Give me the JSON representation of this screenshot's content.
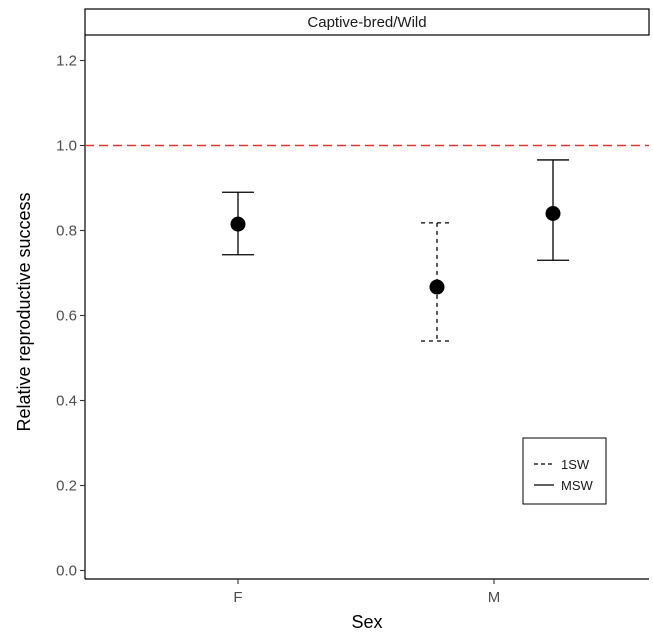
{
  "chart_data": {
    "type": "scatter",
    "facet_label": "Captive-bred/Wild",
    "xlabel": "Sex",
    "ylabel": "Relative reproductive success",
    "categories": [
      "F",
      "M"
    ],
    "ylim": [
      -0.02,
      1.26
    ],
    "yticks": [
      0.0,
      0.2,
      0.4,
      0.6,
      0.8,
      1.0,
      1.2
    ],
    "ytick_labels": [
      "0.0",
      "0.2",
      "0.4",
      "0.6",
      "0.8",
      "1.0",
      "1.2"
    ],
    "reference_line": {
      "y": 1.0,
      "color": "#e0362c",
      "style": "dashed"
    },
    "grid": false,
    "legend": {
      "placement": "bottom-right",
      "entries": [
        {
          "label": "1SW",
          "style": "dashed"
        },
        {
          "label": "MSW",
          "style": "solid"
        }
      ]
    },
    "points": [
      {
        "category": "F",
        "group": "MSW",
        "y": 0.815,
        "lower": 0.743,
        "upper": 0.89
      },
      {
        "category": "M",
        "group": "1SW",
        "y": 0.667,
        "lower": 0.54,
        "upper": 0.818
      },
      {
        "category": "M",
        "group": "MSW",
        "y": 0.84,
        "lower": 0.73,
        "upper": 0.966
      }
    ]
  }
}
